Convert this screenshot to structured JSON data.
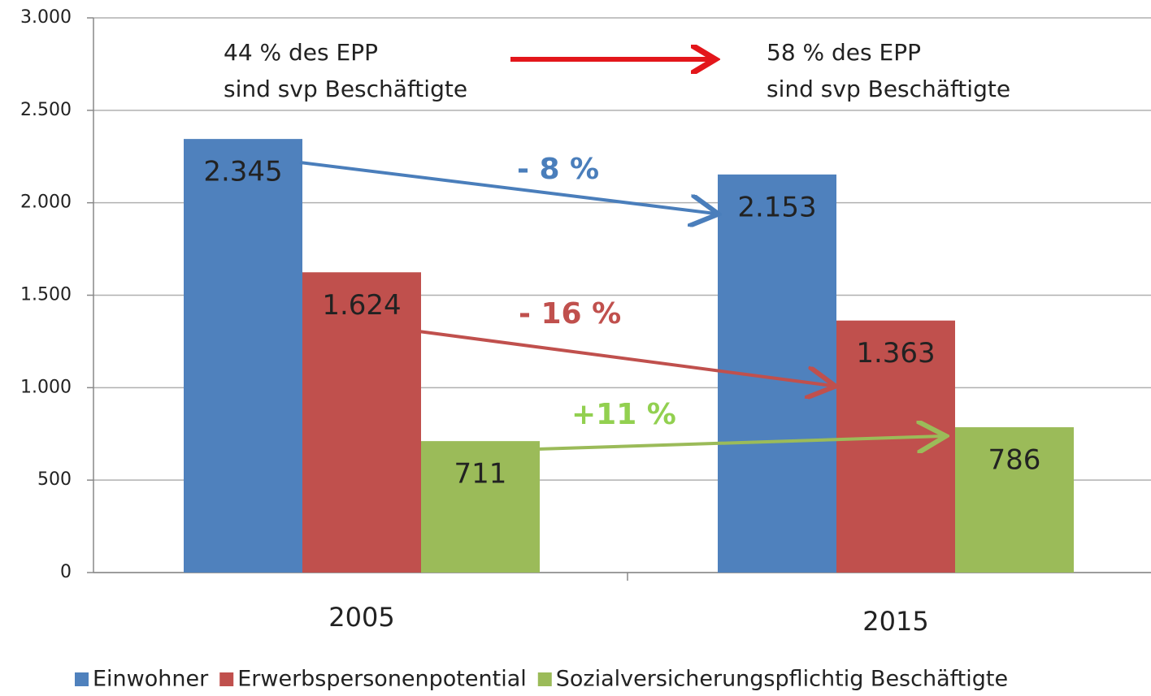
{
  "chart_data": {
    "type": "bar",
    "categories": [
      "2005",
      "2015"
    ],
    "series": [
      {
        "name": "Einwohner",
        "color": "#4f81bd",
        "values": [
          2345,
          2153
        ],
        "value_labels": [
          "2.345",
          "2.153"
        ]
      },
      {
        "name": "Erwerbspersonenpotential",
        "color": "#c0504d",
        "values": [
          1624,
          1363
        ],
        "value_labels": [
          "1.624",
          "1.363"
        ]
      },
      {
        "name": "Sozialversicherungspflichtig Beschäftigte",
        "color": "#9bbb59",
        "values": [
          711,
          786
        ],
        "value_labels": [
          "711",
          "786"
        ]
      }
    ],
    "ylim": [
      0,
      3000
    ],
    "yticks": [
      0,
      {
        "value": 500,
        "label": "500"
      },
      {
        "value": 1000,
        "label": "1.000"
      },
      {
        "value": 1500,
        "label": "1.500"
      },
      {
        "value": 2000,
        "label": "2.000"
      },
      {
        "value": 2500,
        "label": "2.500"
      },
      {
        "value": 3000,
        "label": "3.000"
      }
    ],
    "grid": true,
    "annotations": [
      {
        "lines": [
          "44 % des EPP",
          "sind svp Beschäftigte"
        ]
      },
      {
        "lines": [
          "58 % des EPP",
          "sind svp Beschäftigte"
        ]
      },
      {
        "text": "- 8 %",
        "color": "#4a7ebb"
      },
      {
        "text": "- 16 %",
        "color": "#c0504d"
      },
      {
        "text": "+11 %",
        "color": "#92d050"
      }
    ]
  }
}
